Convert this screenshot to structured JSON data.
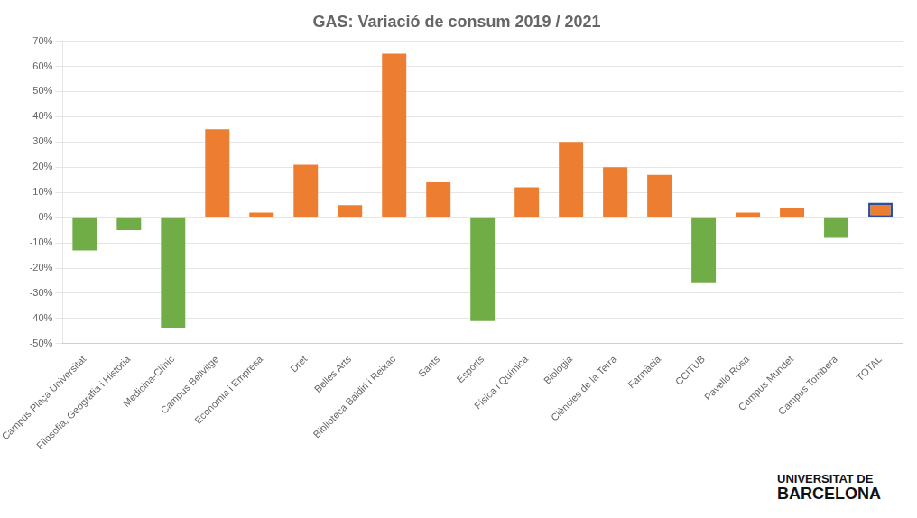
{
  "chart_data": {
    "type": "bar",
    "title": "GAS: Variació de consum 2019 / 2021",
    "categories": [
      "Campus Plaça Universitat",
      "Filosofia, Geografia i Història",
      "Medicina-Clínic",
      "Campus Bellvitge",
      "Economia i Empresa",
      "Dret",
      "Belles Arts",
      "Biblioteca Baldiri i Reixac",
      "Sants",
      "Esports",
      "Física i Química",
      "Biologia",
      "Ciències de la Terra",
      "Farmàcia",
      "CCITUB",
      "Pavelló Rosa",
      "Campus Mundet",
      "Campus Torribera",
      "TOTAL"
    ],
    "values": [
      -13,
      -5,
      -44,
      35,
      2,
      21,
      5,
      65,
      14,
      -41,
      12,
      30,
      20,
      17,
      -26,
      2,
      4,
      -8,
      6
    ],
    "colors": [
      "#70ad47",
      "#70ad47",
      "#70ad47",
      "#ed7d31",
      "#ed7d31",
      "#ed7d31",
      "#ed7d31",
      "#ed7d31",
      "#ed7d31",
      "#70ad47",
      "#ed7d31",
      "#ed7d31",
      "#ed7d31",
      "#ed7d31",
      "#70ad47",
      "#ed7d31",
      "#ed7d31",
      "#70ad47",
      "#ed7d31"
    ],
    "ylim": [
      -50,
      70
    ],
    "yticks": [
      {
        "value": -50,
        "label": "-50%"
      },
      {
        "value": -40,
        "label": "-40%"
      },
      {
        "value": -30,
        "label": "-30%"
      },
      {
        "value": -20,
        "label": "-20%"
      },
      {
        "value": -10,
        "label": "-10%"
      },
      {
        "value": 0,
        "label": "0%"
      },
      {
        "value": 10,
        "label": "10%"
      },
      {
        "value": 20,
        "label": "20%"
      },
      {
        "value": 30,
        "label": "30%"
      },
      {
        "value": 40,
        "label": "40%"
      },
      {
        "value": 50,
        "label": "50%"
      },
      {
        "value": 60,
        "label": "60%"
      },
      {
        "value": 70,
        "label": "70%"
      }
    ],
    "grid": true,
    "annotations": [
      "UNIVERSITAT",
      "DE",
      "BARCELONA"
    ]
  }
}
